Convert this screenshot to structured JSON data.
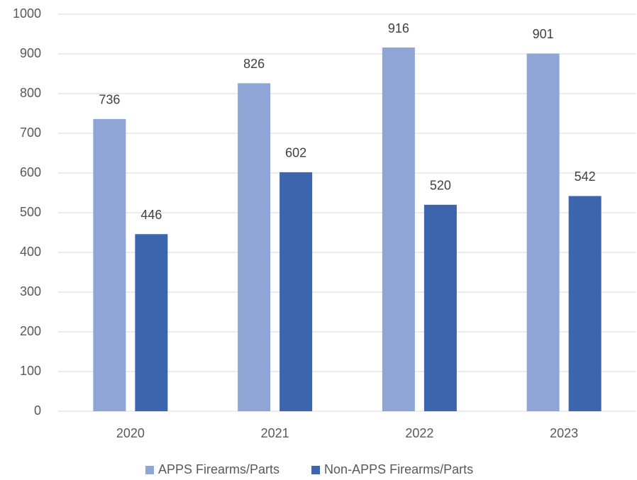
{
  "chart_data": {
    "type": "bar",
    "categories": [
      "2020",
      "2021",
      "2022",
      "2023"
    ],
    "series": [
      {
        "name": "APPS Firearms/Parts",
        "color": "#8fa5d6",
        "values": [
          736,
          826,
          916,
          901
        ]
      },
      {
        "name": "Non-APPS Firearms/Parts",
        "color": "#3c65ae",
        "values": [
          446,
          602,
          520,
          542
        ]
      }
    ],
    "ylim": [
      0,
      1000
    ],
    "yticks": [
      0,
      100,
      200,
      300,
      400,
      500,
      600,
      700,
      800,
      900,
      1000
    ],
    "grid": true,
    "legend": "bottom"
  }
}
